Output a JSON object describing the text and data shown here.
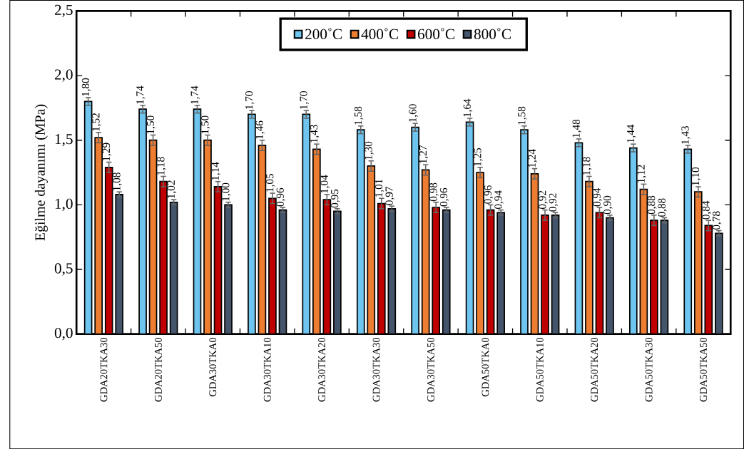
{
  "chart_data": {
    "type": "bar",
    "ylabel": "Eğilme dayanımı (MPa)",
    "categories": [
      "GDA20TKA30",
      "GDA20TKA50",
      "GDA30TKA0",
      "GDA30TKA10",
      "GDA30TKA20",
      "GDA30TKA30",
      "GDA30TKA50",
      "GDA50TKA0",
      "GDA50TKA10",
      "GDA50TKA20",
      "GDA50TKA30",
      "GDA50TKA50"
    ],
    "series": [
      {
        "name": "200˚C",
        "color": "#6ec6f0",
        "values": [
          1.8,
          1.74,
          1.74,
          1.7,
          1.7,
          1.58,
          1.6,
          1.64,
          1.58,
          1.48,
          1.44,
          1.43
        ],
        "value_labels": [
          "1,80",
          "1,74",
          "1,74",
          "1,70",
          "1,70",
          "1,58",
          "1,60",
          "1,64",
          "1,58",
          "1,48",
          "1,44",
          "1,43"
        ],
        "errors": [
          0.03,
          0.03,
          0.03,
          0.03,
          0.03,
          0.03,
          0.03,
          0.03,
          0.03,
          0.03,
          0.03,
          0.03
        ]
      },
      {
        "name": "400˚C",
        "color": "#ed7d31",
        "values": [
          1.52,
          1.5,
          1.5,
          1.46,
          1.43,
          1.3,
          1.27,
          1.25,
          1.24,
          1.18,
          1.12,
          1.1
        ],
        "value_labels": [
          "1,52",
          "1,50",
          "1,50",
          "1,46",
          "1,43",
          "1,30",
          "1,27",
          "1,25",
          "1,24",
          "1,18",
          "1,12",
          "1,10"
        ],
        "errors": [
          0.04,
          0.04,
          0.04,
          0.04,
          0.04,
          0.04,
          0.04,
          0.04,
          0.04,
          0.04,
          0.04,
          0.04
        ]
      },
      {
        "name": "600˚C",
        "color": "#c00000",
        "values": [
          1.29,
          1.18,
          1.14,
          1.05,
          1.04,
          1.01,
          0.98,
          0.96,
          0.92,
          0.94,
          0.88,
          0.84
        ],
        "value_labels": [
          "1,29",
          "1,18",
          "1,14",
          "1,05",
          "1,04",
          "1,01",
          "0,98",
          "0,96",
          "0,92",
          "0,94",
          "0,88",
          "0,84"
        ],
        "errors": [
          0.04,
          0.04,
          0.04,
          0.04,
          0.04,
          0.04,
          0.04,
          0.04,
          0.04,
          0.04,
          0.04,
          0.04
        ]
      },
      {
        "name": "800˚C",
        "color": "#44546a",
        "values": [
          1.08,
          1.02,
          1.0,
          0.96,
          0.95,
          0.97,
          0.96,
          0.94,
          0.92,
          0.9,
          0.88,
          0.78
        ],
        "value_labels": [
          "1,08",
          "1,02",
          "1,00",
          "0,96",
          "0,95",
          "0,97",
          "0,96",
          "0,94",
          "0,92",
          "0,90",
          "0,88",
          "0,78"
        ],
        "errors": [
          0.02,
          0.02,
          0.02,
          0.02,
          0.02,
          0.02,
          0.02,
          0.02,
          0.02,
          0.02,
          0.02,
          0.02
        ]
      }
    ],
    "ylim": [
      0,
      2.5
    ],
    "yticks": [
      {
        "value": 0,
        "label": "0,0"
      },
      {
        "value": 0.5,
        "label": "0,5"
      },
      {
        "value": 1.0,
        "label": "1,0"
      },
      {
        "value": 1.5,
        "label": "1,5"
      },
      {
        "value": 2.0,
        "label": "2,0"
      },
      {
        "value": 2.5,
        "label": "2,5"
      }
    ],
    "legend": "top"
  }
}
